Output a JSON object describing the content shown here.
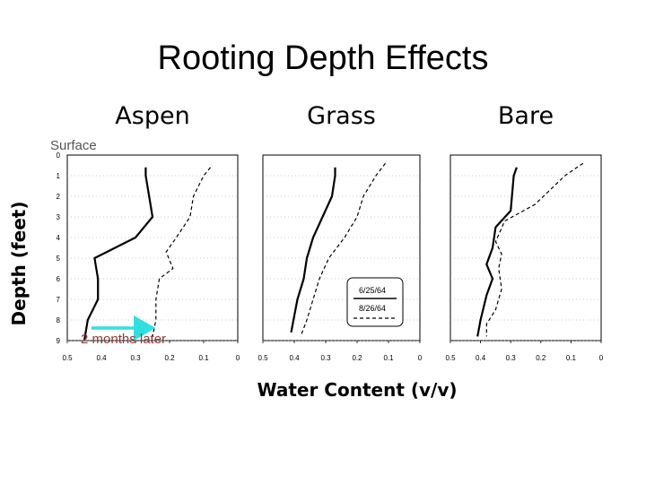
{
  "title": "Rooting Depth Effects",
  "chart_data": {
    "type": "line",
    "xlabel": "Water Content (v/v)",
    "ylabel": "Depth (feet)",
    "xlim": [
      0.5,
      0
    ],
    "ylim": [
      0,
      9
    ],
    "x_ticks": [
      "0.5",
      "0.4",
      "0.3",
      "0.2",
      "0.1",
      "0"
    ],
    "y_ticks": [
      "0",
      "1",
      "2",
      "3",
      "4",
      "5",
      "6",
      "7",
      "8",
      "9"
    ],
    "legend": {
      "placement": "lower-left of Bare panel",
      "entries": [
        "6/25/64",
        "8/26/64"
      ]
    },
    "panels": [
      {
        "name": "Aspen",
        "series": [
          {
            "name": "6/25/64",
            "style": "solid",
            "x": [
              0.27,
              0.27,
              0.26,
              0.25,
              0.3,
              0.42,
              0.41,
              0.41,
              0.44,
              0.45
            ],
            "y": [
              0.6,
              1,
              2,
              3,
              4,
              5,
              6,
              7,
              8,
              9
            ]
          },
          {
            "name": "8/26/64",
            "style": "dashed",
            "x": [
              0.08,
              0.1,
              0.13,
              0.14,
              0.18,
              0.21,
              0.19,
              0.23,
              0.24,
              0.24,
              0.25
            ],
            "y": [
              0.6,
              1,
              2,
              3,
              4,
              4.7,
              5.5,
              6,
              7,
              8,
              8.8
            ]
          }
        ]
      },
      {
        "name": "Grass",
        "series": [
          {
            "name": "6/25/64",
            "style": "solid",
            "x": [
              0.27,
              0.27,
              0.28,
              0.31,
              0.34,
              0.36,
              0.37,
              0.39,
              0.41
            ],
            "y": [
              0.6,
              1,
              2,
              3,
              4,
              5,
              6,
              7,
              8.6
            ]
          },
          {
            "name": "8/26/64",
            "style": "dashed",
            "x": [
              0.11,
              0.14,
              0.18,
              0.2,
              0.24,
              0.29,
              0.32,
              0.34,
              0.36,
              0.37,
              0.38
            ],
            "y": [
              0.4,
              1,
              2,
              3,
              4,
              5,
              6,
              7,
              8,
              8.4,
              8.8
            ]
          }
        ]
      },
      {
        "name": "Bare",
        "series": [
          {
            "name": "6/25/64",
            "style": "solid",
            "x": [
              0.28,
              0.29,
              0.3,
              0.35,
              0.36,
              0.38,
              0.36,
              0.38,
              0.4,
              0.41
            ],
            "y": [
              0.6,
              1,
              2.7,
              3.5,
              4.5,
              5.3,
              6,
              6.8,
              8,
              8.8
            ]
          },
          {
            "name": "8/26/64",
            "style": "dashed",
            "x": [
              0.06,
              0.12,
              0.17,
              0.22,
              0.32,
              0.35,
              0.33,
              0.34,
              0.33,
              0.35,
              0.38,
              0.38
            ],
            "y": [
              0.4,
              1,
              1.7,
              2.4,
              3.2,
              4.2,
              4.8,
              5.5,
              6.5,
              7.5,
              8.2,
              8.8
            ]
          }
        ]
      }
    ],
    "annotations": {
      "surface": "Surface",
      "arrow_label": "2 months later",
      "arrow_color": "#2ee0e0"
    }
  }
}
